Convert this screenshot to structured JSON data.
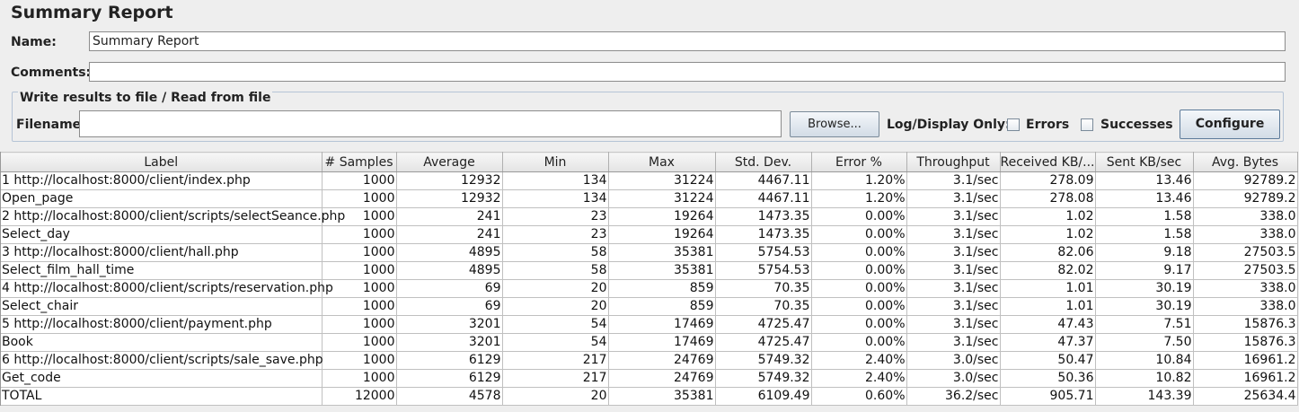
{
  "title": "Summary Report",
  "name_label": "Name:",
  "name_value": "Summary Report",
  "comments_label": "Comments:",
  "comments_value": "",
  "file_group": {
    "legend": "Write results to file / Read from file",
    "filename_label": "Filename",
    "filename_value": "",
    "browse_label": "Browse...",
    "log_display_label": "Log/Display Only:",
    "errors_label": "Errors",
    "successes_label": "Successes",
    "configure_label": "Configure"
  },
  "table": {
    "headers": [
      "Label",
      "# Samples",
      "Average",
      "Min",
      "Max",
      "Std. Dev.",
      "Error %",
      "Throughput",
      "Received KB/...",
      "Sent KB/sec",
      "Avg. Bytes"
    ],
    "rows": [
      [
        "1 http://localhost:8000/client/index.php",
        "1000",
        "12932",
        "134",
        "31224",
        "4467.11",
        "1.20%",
        "3.1/sec",
        "278.09",
        "13.46",
        "92789.2"
      ],
      [
        "Open_page",
        "1000",
        "12932",
        "134",
        "31224",
        "4467.11",
        "1.20%",
        "3.1/sec",
        "278.08",
        "13.46",
        "92789.2"
      ],
      [
        "2 http://localhost:8000/client/scripts/selectSeance.php",
        "1000",
        "241",
        "23",
        "19264",
        "1473.35",
        "0.00%",
        "3.1/sec",
        "1.02",
        "1.58",
        "338.0"
      ],
      [
        "Select_day",
        "1000",
        "241",
        "23",
        "19264",
        "1473.35",
        "0.00%",
        "3.1/sec",
        "1.02",
        "1.58",
        "338.0"
      ],
      [
        "3 http://localhost:8000/client/hall.php",
        "1000",
        "4895",
        "58",
        "35381",
        "5754.53",
        "0.00%",
        "3.1/sec",
        "82.06",
        "9.18",
        "27503.5"
      ],
      [
        "Select_film_hall_time",
        "1000",
        "4895",
        "58",
        "35381",
        "5754.53",
        "0.00%",
        "3.1/sec",
        "82.02",
        "9.17",
        "27503.5"
      ],
      [
        "4 http://localhost:8000/client/scripts/reservation.php",
        "1000",
        "69",
        "20",
        "859",
        "70.35",
        "0.00%",
        "3.1/sec",
        "1.01",
        "30.19",
        "338.0"
      ],
      [
        "Select_chair",
        "1000",
        "69",
        "20",
        "859",
        "70.35",
        "0.00%",
        "3.1/sec",
        "1.01",
        "30.19",
        "338.0"
      ],
      [
        "5 http://localhost:8000/client/payment.php",
        "1000",
        "3201",
        "54",
        "17469",
        "4725.47",
        "0.00%",
        "3.1/sec",
        "47.43",
        "7.51",
        "15876.3"
      ],
      [
        "Book",
        "1000",
        "3201",
        "54",
        "17469",
        "4725.47",
        "0.00%",
        "3.1/sec",
        "47.37",
        "7.50",
        "15876.3"
      ],
      [
        "6 http://localhost:8000/client/scripts/sale_save.php",
        "1000",
        "6129",
        "217",
        "24769",
        "5749.32",
        "2.40%",
        "3.0/sec",
        "50.47",
        "10.84",
        "16961.2"
      ],
      [
        "Get_code",
        "1000",
        "6129",
        "217",
        "24769",
        "5749.32",
        "2.40%",
        "3.0/sec",
        "50.36",
        "10.82",
        "16961.2"
      ],
      [
        "TOTAL",
        "12000",
        "4578",
        "20",
        "35381",
        "6109.49",
        "0.60%",
        "36.2/sec",
        "905.71",
        "143.39",
        "25634.4"
      ]
    ]
  }
}
